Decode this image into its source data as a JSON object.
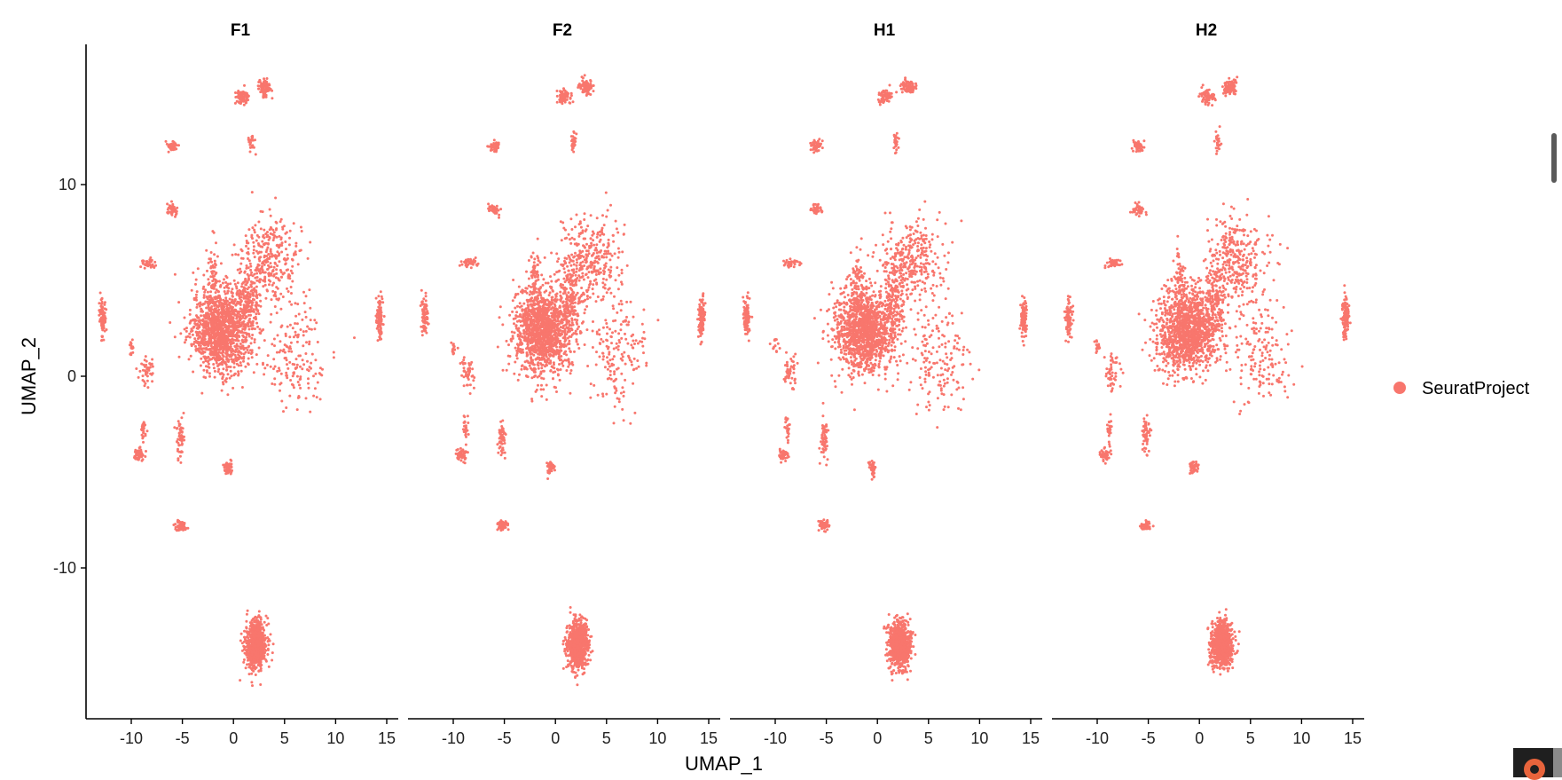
{
  "chart_data": {
    "type": "scatter",
    "title": "",
    "xlabel": "UMAP_1",
    "ylabel": "UMAP_2",
    "xlim": [
      -14,
      17
    ],
    "ylim": [
      -18,
      17.3
    ],
    "x_ticks": [
      -10,
      -5,
      0,
      5,
      10,
      15
    ],
    "y_ticks": [
      -10,
      0,
      10
    ],
    "grid": false,
    "legend": {
      "position": "right",
      "entries": [
        "SeuratProject"
      ]
    },
    "color": "#F8766D",
    "panels": [
      {
        "title": "F1",
        "variant": 0
      },
      {
        "title": "F2",
        "variant": 1
      },
      {
        "title": "H1",
        "variant": 2
      },
      {
        "title": "H2",
        "variant": 3
      }
    ],
    "clusters": [
      {
        "name": "main-mass",
        "x": -1.2,
        "y": 2.4,
        "sx": 2.6,
        "sy": 2.0,
        "n": 1300
      },
      {
        "name": "upper-spread",
        "x": 3.5,
        "y": 6.0,
        "sx": 2.8,
        "sy": 2.0,
        "n": 320
      },
      {
        "name": "streak-a",
        "x": 1.5,
        "y": 4.0,
        "sx": 1.0,
        "sy": 1.8,
        "n": 160
      },
      {
        "name": "streak-b",
        "x": -2.0,
        "y": 5.0,
        "sx": 0.5,
        "sy": 1.6,
        "n": 60
      },
      {
        "name": "right-scatter",
        "x": 6.0,
        "y": 1.0,
        "sx": 2.8,
        "sy": 2.6,
        "n": 160
      },
      {
        "name": "bottom-elongated",
        "x": 2.2,
        "y": -14.0,
        "sx": 0.9,
        "sy": 1.1,
        "n": 850
      },
      {
        "name": "top-right",
        "x": 3.0,
        "y": 15.1,
        "sx": 0.6,
        "sy": 0.35,
        "n": 90
      },
      {
        "name": "top-left",
        "x": 0.8,
        "y": 14.6,
        "sx": 0.6,
        "sy": 0.35,
        "n": 70
      },
      {
        "name": "upper-small",
        "x": 1.8,
        "y": 12.2,
        "sx": 0.25,
        "sy": 0.5,
        "n": 25
      },
      {
        "name": "left-far",
        "x": -12.8,
        "y": 3.1,
        "sx": 0.3,
        "sy": 0.9,
        "n": 90
      },
      {
        "name": "right-far",
        "x": 14.3,
        "y": 3.0,
        "sx": 0.3,
        "sy": 1.0,
        "n": 110
      },
      {
        "name": "left-12",
        "x": -6.0,
        "y": 12.0,
        "sx": 0.5,
        "sy": 0.25,
        "n": 45
      },
      {
        "name": "left-9",
        "x": -6.0,
        "y": 8.7,
        "sx": 0.5,
        "sy": 0.25,
        "n": 40
      },
      {
        "name": "left-6",
        "x": -8.3,
        "y": 5.9,
        "sx": 0.7,
        "sy": 0.2,
        "n": 40
      },
      {
        "name": "low-left-a",
        "x": -9.2,
        "y": -4.1,
        "sx": 0.5,
        "sy": 0.3,
        "n": 45
      },
      {
        "name": "low-left-b",
        "x": -5.2,
        "y": -3.2,
        "sx": 0.3,
        "sy": 0.9,
        "n": 55
      },
      {
        "name": "low-left-c",
        "x": -8.8,
        "y": -2.8,
        "sx": 0.2,
        "sy": 0.6,
        "n": 25
      },
      {
        "name": "low-mid",
        "x": -0.5,
        "y": -4.8,
        "sx": 0.35,
        "sy": 0.35,
        "n": 45
      },
      {
        "name": "low-far",
        "x": -5.2,
        "y": -7.8,
        "sx": 0.5,
        "sy": 0.25,
        "n": 55
      },
      {
        "name": "mid-left",
        "x": -8.5,
        "y": 0.2,
        "sx": 0.6,
        "sy": 0.8,
        "n": 45
      },
      {
        "name": "mid-left-small",
        "x": -10.0,
        "y": 1.5,
        "sx": 0.3,
        "sy": 0.4,
        "n": 15
      }
    ]
  }
}
